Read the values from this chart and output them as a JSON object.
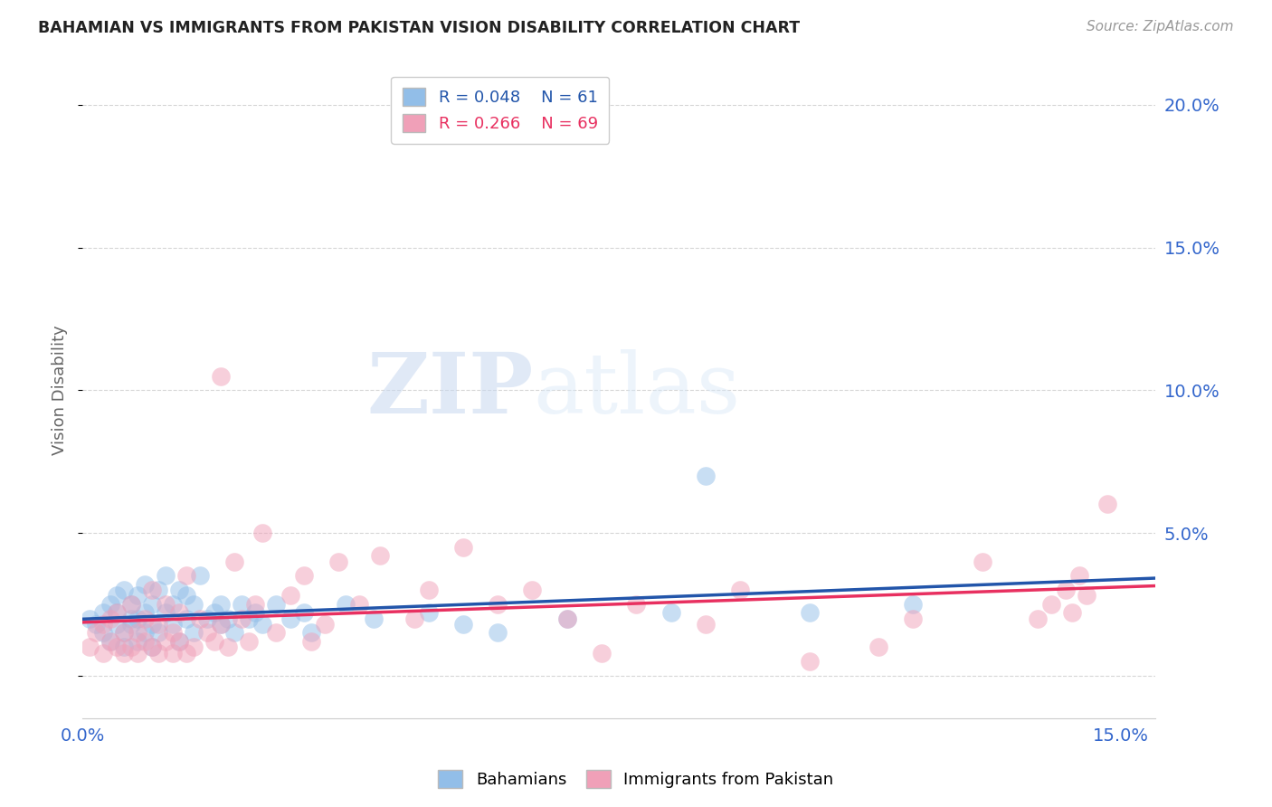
{
  "title": "BAHAMIAN VS IMMIGRANTS FROM PAKISTAN VISION DISABILITY CORRELATION CHART",
  "source": "Source: ZipAtlas.com",
  "ylabel": "Vision Disability",
  "xlim": [
    0.0,
    0.155
  ],
  "ylim": [
    -0.015,
    0.215
  ],
  "x_ticks": [
    0.0,
    0.025,
    0.05,
    0.075,
    0.1,
    0.125,
    0.15
  ],
  "x_tick_labels": [
    "0.0%",
    "",
    "",
    "",
    "",
    "",
    "15.0%"
  ],
  "y_ticks_right": [
    0.0,
    0.05,
    0.1,
    0.15,
    0.2
  ],
  "y_tick_labels_right": [
    "",
    "5.0%",
    "10.0%",
    "15.0%",
    "20.0%"
  ],
  "legend_blue_r": "0.048",
  "legend_blue_n": "61",
  "legend_pink_r": "0.266",
  "legend_pink_n": "69",
  "blue_color": "#92BEE8",
  "pink_color": "#F0A0B8",
  "blue_line_color": "#2255AA",
  "pink_line_color": "#E83060",
  "watermark_zip": "ZIP",
  "watermark_atlas": "atlas",
  "bahamians_x": [
    0.001,
    0.002,
    0.003,
    0.003,
    0.004,
    0.004,
    0.005,
    0.005,
    0.005,
    0.006,
    0.006,
    0.006,
    0.007,
    0.007,
    0.007,
    0.008,
    0.008,
    0.008,
    0.009,
    0.009,
    0.009,
    0.01,
    0.01,
    0.01,
    0.011,
    0.011,
    0.012,
    0.012,
    0.013,
    0.013,
    0.014,
    0.014,
    0.015,
    0.015,
    0.016,
    0.016,
    0.017,
    0.018,
    0.019,
    0.02,
    0.02,
    0.021,
    0.022,
    0.023,
    0.024,
    0.025,
    0.026,
    0.028,
    0.03,
    0.032,
    0.033,
    0.038,
    0.042,
    0.05,
    0.055,
    0.06,
    0.07,
    0.085,
    0.09,
    0.105,
    0.12
  ],
  "bahamians_y": [
    0.02,
    0.018,
    0.022,
    0.015,
    0.025,
    0.012,
    0.018,
    0.028,
    0.022,
    0.015,
    0.03,
    0.01,
    0.02,
    0.025,
    0.018,
    0.012,
    0.028,
    0.02,
    0.015,
    0.032,
    0.022,
    0.01,
    0.025,
    0.018,
    0.03,
    0.015,
    0.022,
    0.035,
    0.018,
    0.025,
    0.012,
    0.03,
    0.02,
    0.028,
    0.015,
    0.025,
    0.035,
    0.02,
    0.022,
    0.025,
    0.018,
    0.02,
    0.015,
    0.025,
    0.02,
    0.022,
    0.018,
    0.025,
    0.02,
    0.022,
    0.015,
    0.025,
    0.02,
    0.022,
    0.018,
    0.015,
    0.02,
    0.022,
    0.07,
    0.022,
    0.025
  ],
  "pakistan_x": [
    0.001,
    0.002,
    0.003,
    0.003,
    0.004,
    0.004,
    0.005,
    0.005,
    0.006,
    0.006,
    0.007,
    0.007,
    0.008,
    0.008,
    0.009,
    0.009,
    0.01,
    0.01,
    0.011,
    0.011,
    0.012,
    0.012,
    0.013,
    0.013,
    0.014,
    0.014,
    0.015,
    0.015,
    0.016,
    0.017,
    0.018,
    0.019,
    0.02,
    0.02,
    0.021,
    0.022,
    0.023,
    0.024,
    0.025,
    0.026,
    0.028,
    0.03,
    0.032,
    0.033,
    0.035,
    0.037,
    0.04,
    0.043,
    0.048,
    0.05,
    0.055,
    0.06,
    0.065,
    0.07,
    0.075,
    0.08,
    0.09,
    0.095,
    0.105,
    0.115,
    0.12,
    0.13,
    0.138,
    0.14,
    0.142,
    0.143,
    0.144,
    0.145,
    0.148
  ],
  "pakistan_y": [
    0.01,
    0.015,
    0.008,
    0.018,
    0.012,
    0.02,
    0.01,
    0.022,
    0.008,
    0.015,
    0.01,
    0.025,
    0.008,
    0.015,
    0.012,
    0.02,
    0.01,
    0.03,
    0.008,
    0.018,
    0.012,
    0.025,
    0.008,
    0.015,
    0.012,
    0.022,
    0.008,
    0.035,
    0.01,
    0.02,
    0.015,
    0.012,
    0.018,
    0.105,
    0.01,
    0.04,
    0.02,
    0.012,
    0.025,
    0.05,
    0.015,
    0.028,
    0.035,
    0.012,
    0.018,
    0.04,
    0.025,
    0.042,
    0.02,
    0.03,
    0.045,
    0.025,
    0.03,
    0.02,
    0.008,
    0.025,
    0.018,
    0.03,
    0.005,
    0.01,
    0.02,
    0.04,
    0.02,
    0.025,
    0.03,
    0.022,
    0.035,
    0.028,
    0.06
  ]
}
